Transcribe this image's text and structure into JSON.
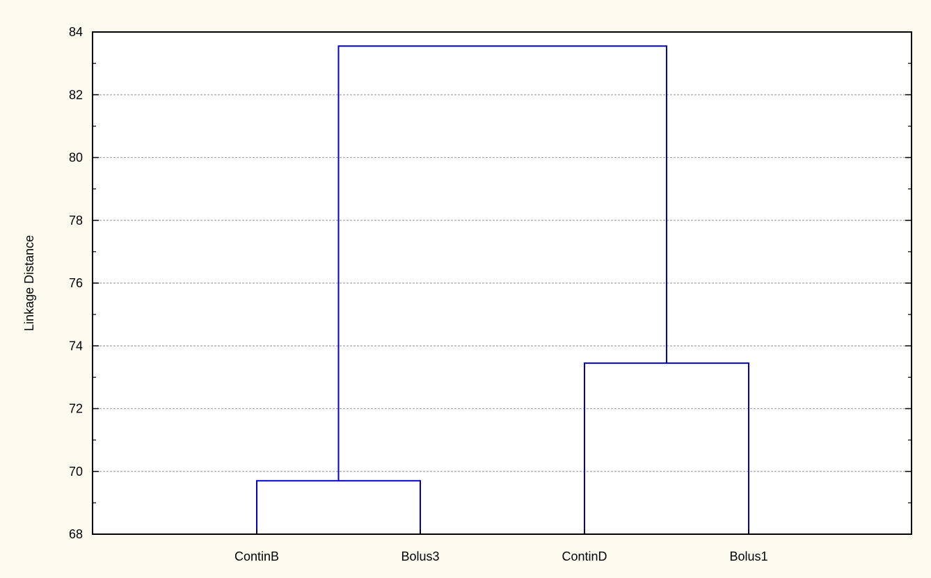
{
  "chart_data": {
    "type": "dendrogram",
    "ylabel": "Linkage Distance",
    "xlabel": "",
    "ylim": [
      68,
      84
    ],
    "yticks": [
      68,
      70,
      72,
      74,
      76,
      78,
      80,
      82,
      84
    ],
    "grid": true,
    "leaves": [
      "ContinB",
      "Bolus3",
      "ContinD",
      "Bolus1"
    ],
    "merges": [
      {
        "left": "ContinB",
        "right": "Bolus3",
        "distance": 69.7
      },
      {
        "left": "ContinD",
        "right": "Bolus1",
        "distance": 73.45
      },
      {
        "left": "ContinB+Bolus3",
        "right": "ContinD+Bolus1",
        "distance": 83.55
      }
    ],
    "line_color": "#0000cc"
  }
}
